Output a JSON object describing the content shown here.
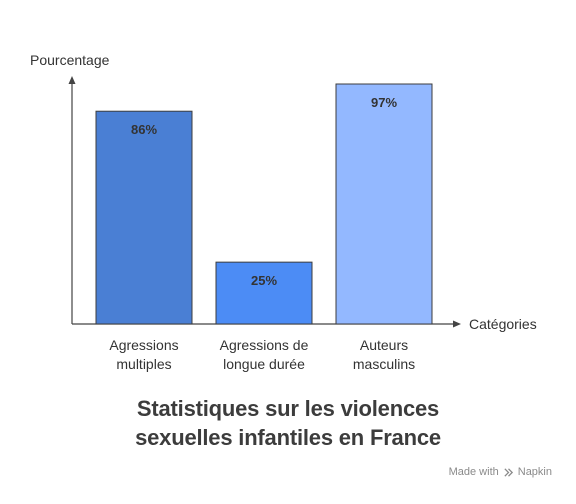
{
  "chart_data": {
    "type": "bar",
    "categories": [
      [
        "Agressions",
        "multiples"
      ],
      [
        "Agressions de",
        "longue durée"
      ],
      [
        "Auteurs",
        "masculins"
      ]
    ],
    "values": [
      86,
      25,
      97
    ],
    "value_labels": [
      "86%",
      "25%",
      "97%"
    ],
    "ylabel": "Pourcentage",
    "xlabel": "Catégories",
    "ylim": [
      0,
      100
    ],
    "grid": false,
    "colors": [
      "#4a7fd4",
      "#4c8cf5",
      "#93b8ff"
    ]
  },
  "title_lines": [
    "Statistiques sur les violences",
    "sexuelles infantiles en France"
  ],
  "footer": {
    "made_with": "Made with",
    "brand": "Napkin"
  }
}
